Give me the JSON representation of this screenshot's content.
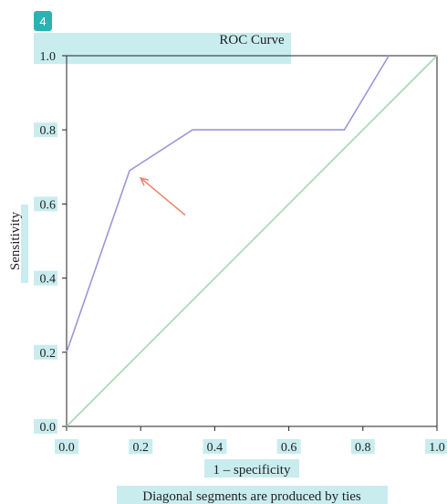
{
  "figure": {
    "badge": "4",
    "footnote": "Diagonal segments are produced by ties"
  },
  "colors": {
    "roc_line": "#9b97d6",
    "reference_line": "#a6d6b0",
    "arrow": "#e8836b",
    "highlight": "#c9ecef",
    "badge_bg": "#2bb3b3",
    "axis": "#222222"
  },
  "chart_data": {
    "type": "line",
    "title": "ROC Curve",
    "xlabel": "1 – specificity",
    "ylabel": "Sensitivity",
    "xlim": [
      0.0,
      1.0
    ],
    "ylim": [
      0.0,
      1.0
    ],
    "x_ticks": [
      "0.0",
      "0.2",
      "0.4",
      "0.6",
      "0.8",
      "1.0"
    ],
    "y_ticks": [
      "0.0",
      "0.2",
      "0.4",
      "0.6",
      "0.8",
      "1.0"
    ],
    "grid": false,
    "series": [
      {
        "role": "roc_curve",
        "x": [
          0.0,
          0.17,
          0.34,
          0.75,
          0.87
        ],
        "y": [
          0.2,
          0.69,
          0.8,
          0.8,
          1.0
        ]
      },
      {
        "role": "reference_line",
        "x": [
          0.0,
          1.0
        ],
        "y": [
          0.0,
          1.0
        ]
      }
    ],
    "annotations": [
      {
        "type": "arrow",
        "from": [
          0.32,
          0.57
        ],
        "to": [
          0.2,
          0.67
        ]
      }
    ]
  }
}
